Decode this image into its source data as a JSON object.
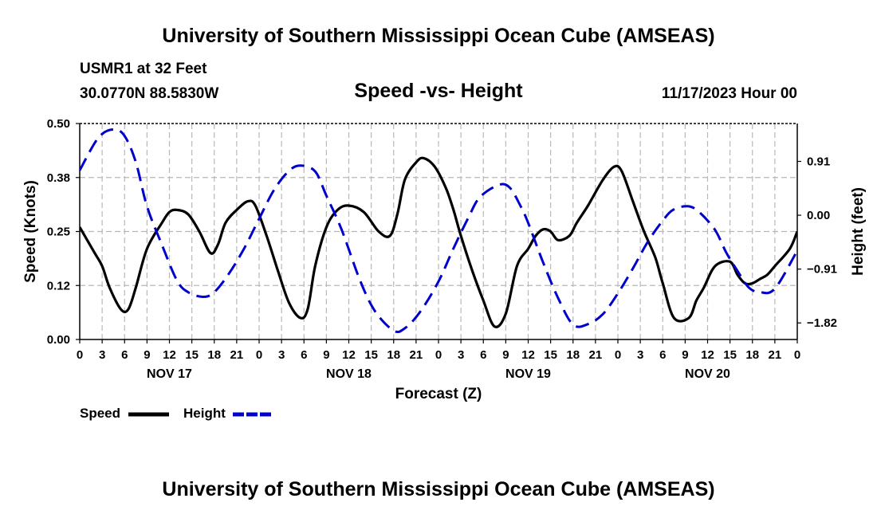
{
  "page": {
    "title_top": "University of Southern Mississippi Ocean Cube (AMSEAS)",
    "title_bottom": "University of Southern Mississippi Ocean Cube (AMSEAS)",
    "station": "USMR1 at 32 Feet",
    "coords": "30.0770N  88.5830W",
    "date": "11/17/2023 Hour 00"
  },
  "chart_data": {
    "type": "line",
    "title": "Speed -vs- Height",
    "xlabel": "Forecast (Z)",
    "ylabel_left": "Speed (Knots)",
    "ylabel_right": "Height (feet)",
    "x_range": [
      0,
      96
    ],
    "ylim_left": [
      0,
      0.5
    ],
    "ylim_right": [
      -2.1,
      1.55
    ],
    "left_ticks": [
      "0.00",
      "0.12",
      "0.25",
      "0.38",
      "0.50"
    ],
    "left_tick_values": [
      0,
      0.125,
      0.25,
      0.375,
      0.5
    ],
    "right_ticks": [
      "−1.82",
      "−0.91",
      "0.00",
      "0.91"
    ],
    "right_tick_values": [
      -1.82,
      -0.91,
      0,
      0.91
    ],
    "x_tick_labels": [
      "0",
      "3",
      "6",
      "9",
      "12",
      "15",
      "18",
      "21",
      "0",
      "3",
      "6",
      "9",
      "12",
      "15",
      "18",
      "21",
      "0",
      "3",
      "6",
      "9",
      "12",
      "15",
      "18",
      "21",
      "0",
      "3",
      "6",
      "9",
      "12",
      "15",
      "18",
      "21",
      "0"
    ],
    "day_labels": [
      {
        "label": "NOV 17",
        "hour": 12
      },
      {
        "label": "NOV 18",
        "hour": 36
      },
      {
        "label": "NOV 19",
        "hour": 60
      },
      {
        "label": "NOV 20",
        "hour": 84
      }
    ],
    "grid": true,
    "legend_position": "bottom-left",
    "series": [
      {
        "name": "Speed",
        "axis": "left",
        "color": "#000000",
        "style": "solid",
        "x": [
          0,
          2,
          3,
          4,
          5.5,
          6.5,
          7.5,
          9,
          11,
          12,
          13,
          14.5,
          16,
          17.5,
          18.5,
          19.5,
          21,
          22.5,
          23.5,
          25,
          26.5,
          28,
          29.5,
          30.5,
          31.5,
          33,
          34.5,
          36,
          38,
          40,
          41.5,
          42.5,
          43.5,
          45,
          46,
          47.5,
          49,
          50,
          51,
          52.5,
          54,
          55.5,
          57,
          58.5,
          60,
          61,
          62,
          63,
          64,
          65.5,
          66.5,
          68,
          70,
          71.5,
          72.5,
          74,
          75.5,
          77,
          78,
          79.5,
          81.5,
          82.5,
          83.5,
          85,
          87,
          88,
          89,
          90,
          91,
          92,
          93,
          95,
          96
        ],
        "values": [
          0.26,
          0.2,
          0.17,
          0.12,
          0.07,
          0.07,
          0.12,
          0.21,
          0.27,
          0.295,
          0.3,
          0.29,
          0.25,
          0.2,
          0.22,
          0.27,
          0.3,
          0.32,
          0.31,
          0.24,
          0.16,
          0.085,
          0.05,
          0.07,
          0.17,
          0.26,
          0.3,
          0.31,
          0.295,
          0.25,
          0.24,
          0.29,
          0.37,
          0.41,
          0.42,
          0.4,
          0.35,
          0.3,
          0.24,
          0.16,
          0.09,
          0.03,
          0.06,
          0.17,
          0.21,
          0.24,
          0.255,
          0.25,
          0.23,
          0.24,
          0.27,
          0.31,
          0.37,
          0.4,
          0.39,
          0.32,
          0.25,
          0.19,
          0.13,
          0.05,
          0.05,
          0.09,
          0.12,
          0.17,
          0.18,
          0.15,
          0.13,
          0.13,
          0.14,
          0.15,
          0.17,
          0.21,
          0.25
        ]
      },
      {
        "name": "Height",
        "axis": "right",
        "color": "#0000cc",
        "style": "dashed",
        "x": [
          0,
          2.5,
          4.5,
          6,
          7.5,
          9,
          11,
          13,
          14.5,
          16.5,
          18,
          20,
          22,
          24,
          26,
          28,
          29.5,
          31.5,
          33,
          35,
          37.5,
          39.5,
          42,
          43.5,
          45.5,
          48,
          50,
          52,
          53.5,
          56,
          57.5,
          59,
          60,
          62,
          64,
          66,
          68,
          70,
          72,
          74,
          76,
          78,
          79.5,
          81.5,
          83,
          85,
          86.5,
          88,
          89.5,
          91,
          93,
          96
        ],
        "values": [
          0.76,
          1.31,
          1.45,
          1.34,
          0.9,
          0.15,
          -0.5,
          -1.1,
          -1.3,
          -1.38,
          -1.3,
          -0.98,
          -0.56,
          -0.06,
          0.43,
          0.75,
          0.84,
          0.74,
          0.33,
          -0.23,
          -1.1,
          -1.62,
          -1.95,
          -1.91,
          -1.64,
          -1.12,
          -0.56,
          -0.04,
          0.3,
          0.51,
          0.47,
          0.15,
          -0.13,
          -0.8,
          -1.4,
          -1.85,
          -1.84,
          -1.67,
          -1.32,
          -0.9,
          -0.45,
          -0.09,
          0.1,
          0.15,
          0.04,
          -0.25,
          -0.63,
          -0.94,
          -1.22,
          -1.3,
          -1.24,
          -0.6
        ]
      }
    ]
  }
}
